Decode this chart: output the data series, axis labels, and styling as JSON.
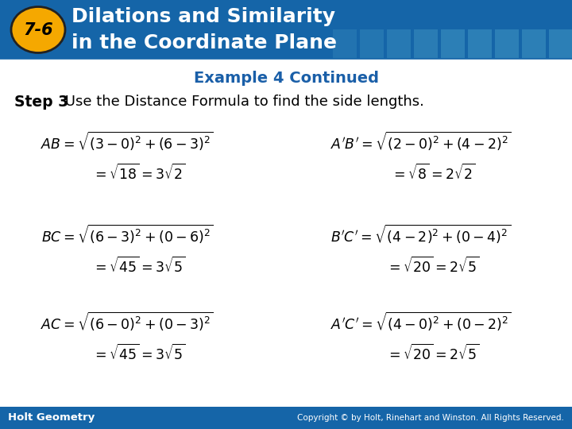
{
  "header_bg_color": "#1565a8",
  "header_text_line1": "Dilations and Similarity",
  "header_text_line2": "in the Coordinate Plane",
  "badge_color": "#f5a800",
  "badge_text": "7-6",
  "subtitle": "Example 4 Continued",
  "subtitle_color": "#1a5fa8",
  "step_label": "Step 3",
  "step_text": " Use the Distance Formula to find the side lengths.",
  "footer_bg_color": "#1565a8",
  "footer_left": "Holt Geometry",
  "footer_right": "Copyright © by Holt, Rinehart and Winston. All Rights Reserved.",
  "bg_color": "#ffffff",
  "header_tile_color": "#4a9fc8",
  "formulas_left": [
    {
      "line1": "AB = \\sqrt{(3-0)^{2}+(6-3)^{2}}",
      "line2": "= \\sqrt{18} = 3\\sqrt{2}"
    },
    {
      "line1": "BC = \\sqrt{(6-3)^{2}+(0-6)^{2}}",
      "line2": "= \\sqrt{45} = 3\\sqrt{5}"
    },
    {
      "line1": "AC = \\sqrt{(6-0)^{2}+(0-3)^{2}}",
      "line2": "= \\sqrt{45} = 3\\sqrt{5}"
    }
  ],
  "formulas_right": [
    {
      "line1": "A'B' = \\sqrt{(2-0)^{2}+(4-2)^{2}}",
      "line2": "= \\sqrt{8} = 2\\sqrt{2}"
    },
    {
      "line1": "B'C' = \\sqrt{(4-2)^{2}+(0-4)^{2}}",
      "line2": "= \\sqrt{20} = 2\\sqrt{5}"
    },
    {
      "line1": "A'C' = \\sqrt{(4-0)^{2}+(0-2)^{2}}",
      "line2": "= \\sqrt{20} = 2\\sqrt{5}"
    }
  ]
}
